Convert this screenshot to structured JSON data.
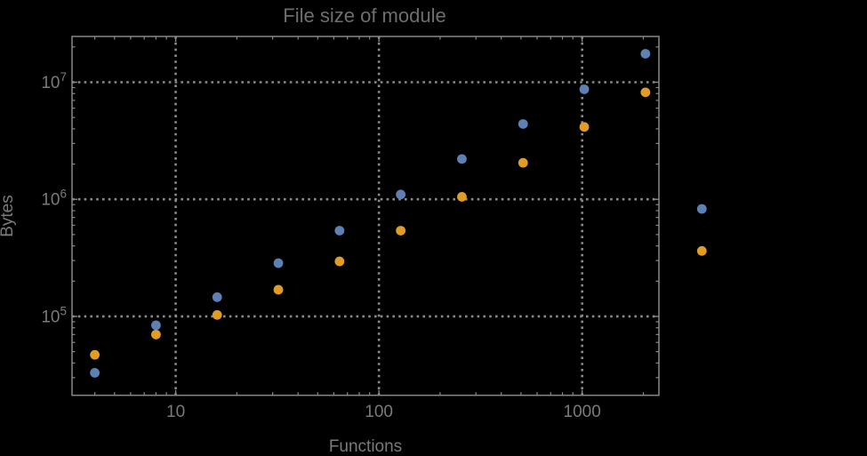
{
  "chart_data": {
    "type": "scatter",
    "title": "File size of module",
    "xlabel": "Functions",
    "ylabel": "Bytes",
    "x_scale": "log",
    "y_scale": "log",
    "xlim": [
      3.09,
      2386
    ],
    "ylim": [
      21200,
      24600000
    ],
    "grid": "dotted lines at decade positions, both axes",
    "legend_position": "right of frame, markers only (labels not visible)",
    "x_major_ticks": [
      10,
      100,
      1000
    ],
    "x_tick_labels": [
      "10",
      "100",
      "1000"
    ],
    "y_major_ticks": [
      100000,
      1000000,
      10000000
    ],
    "y_tick_labels": [
      {
        "base": "10",
        "exp": "5"
      },
      {
        "base": "10",
        "exp": "6"
      },
      {
        "base": "10",
        "exp": "7"
      }
    ],
    "x": [
      4,
      8,
      16,
      32,
      64,
      128,
      256,
      512,
      1024,
      2048
    ],
    "series": [
      {
        "id": "blue-series",
        "color": "#5E81B5",
        "values": [
          33000,
          84000,
          146000,
          285000,
          540000,
          1100000,
          2210000,
          4400000,
          8700000,
          17500000
        ]
      },
      {
        "id": "orange-series",
        "color": "#E09C24",
        "values": [
          47000,
          70000,
          103000,
          169000,
          295000,
          540000,
          1050000,
          2050000,
          4150000,
          8200000
        ]
      }
    ],
    "legend_markers": [
      {
        "series": "blue-series",
        "color": "#5E81B5",
        "label": ""
      },
      {
        "series": "orange-series",
        "color": "#E09C24",
        "label": ""
      }
    ]
  },
  "colors": {
    "background": "#000000",
    "frame": "#888888",
    "grid": "#8a8a8a",
    "tick": "#888888",
    "tick_label": "#7a7a7a",
    "axis_label": "#7a7a7a",
    "title": "#6e6e6e",
    "series_blue": "#5E81B5",
    "series_orange": "#E09C24"
  }
}
